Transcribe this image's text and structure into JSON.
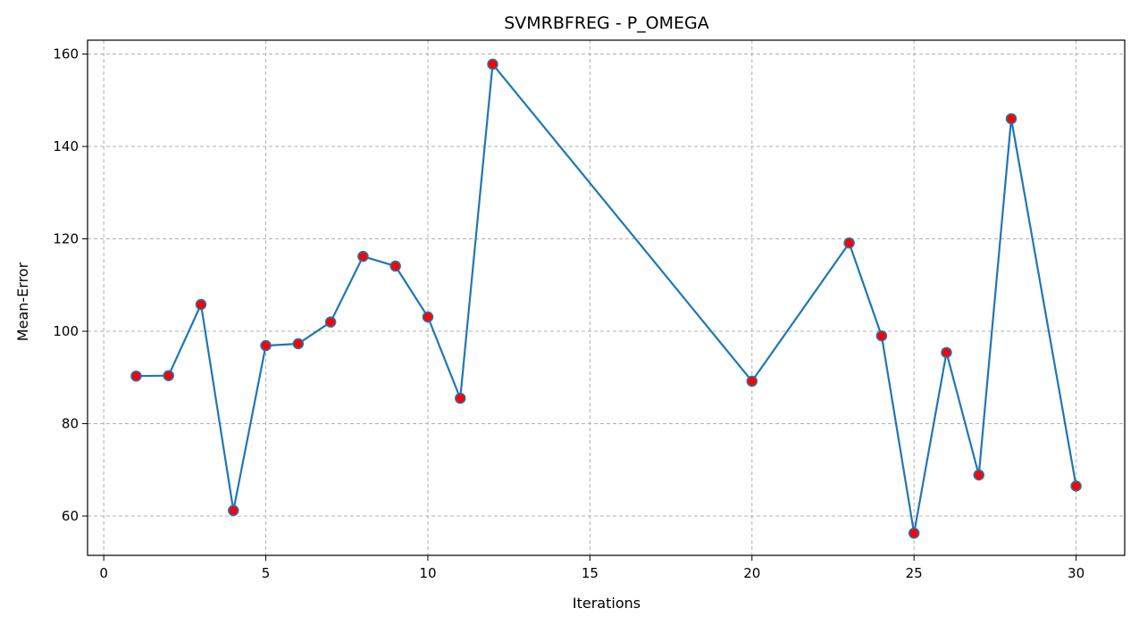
{
  "chart_data": {
    "type": "line",
    "title": "SVMRBFREG - P_OMEGA",
    "xlabel": "Iterations",
    "ylabel": "Mean-Error",
    "xlim": [
      -0.5,
      31.5
    ],
    "ylim": [
      51.5,
      163
    ],
    "xticks": [
      0,
      5,
      10,
      15,
      20,
      25,
      30
    ],
    "yticks": [
      60,
      80,
      100,
      120,
      140,
      160
    ],
    "grid": true,
    "line_color": "#1f77b4",
    "marker_color": "#ff0000",
    "series": [
      {
        "x": [
          1,
          2,
          3,
          4,
          5,
          6,
          7,
          8,
          9,
          10,
          11,
          12,
          20,
          23,
          24,
          25,
          26,
          27,
          28,
          30
        ],
        "y": [
          90.3,
          90.4,
          105.8,
          61.2,
          96.9,
          97.3,
          102.0,
          116.2,
          114.1,
          103.1,
          85.5,
          157.8,
          89.2,
          119.1,
          99.0,
          56.3,
          95.4,
          68.9,
          146.0,
          66.5
        ]
      }
    ]
  }
}
